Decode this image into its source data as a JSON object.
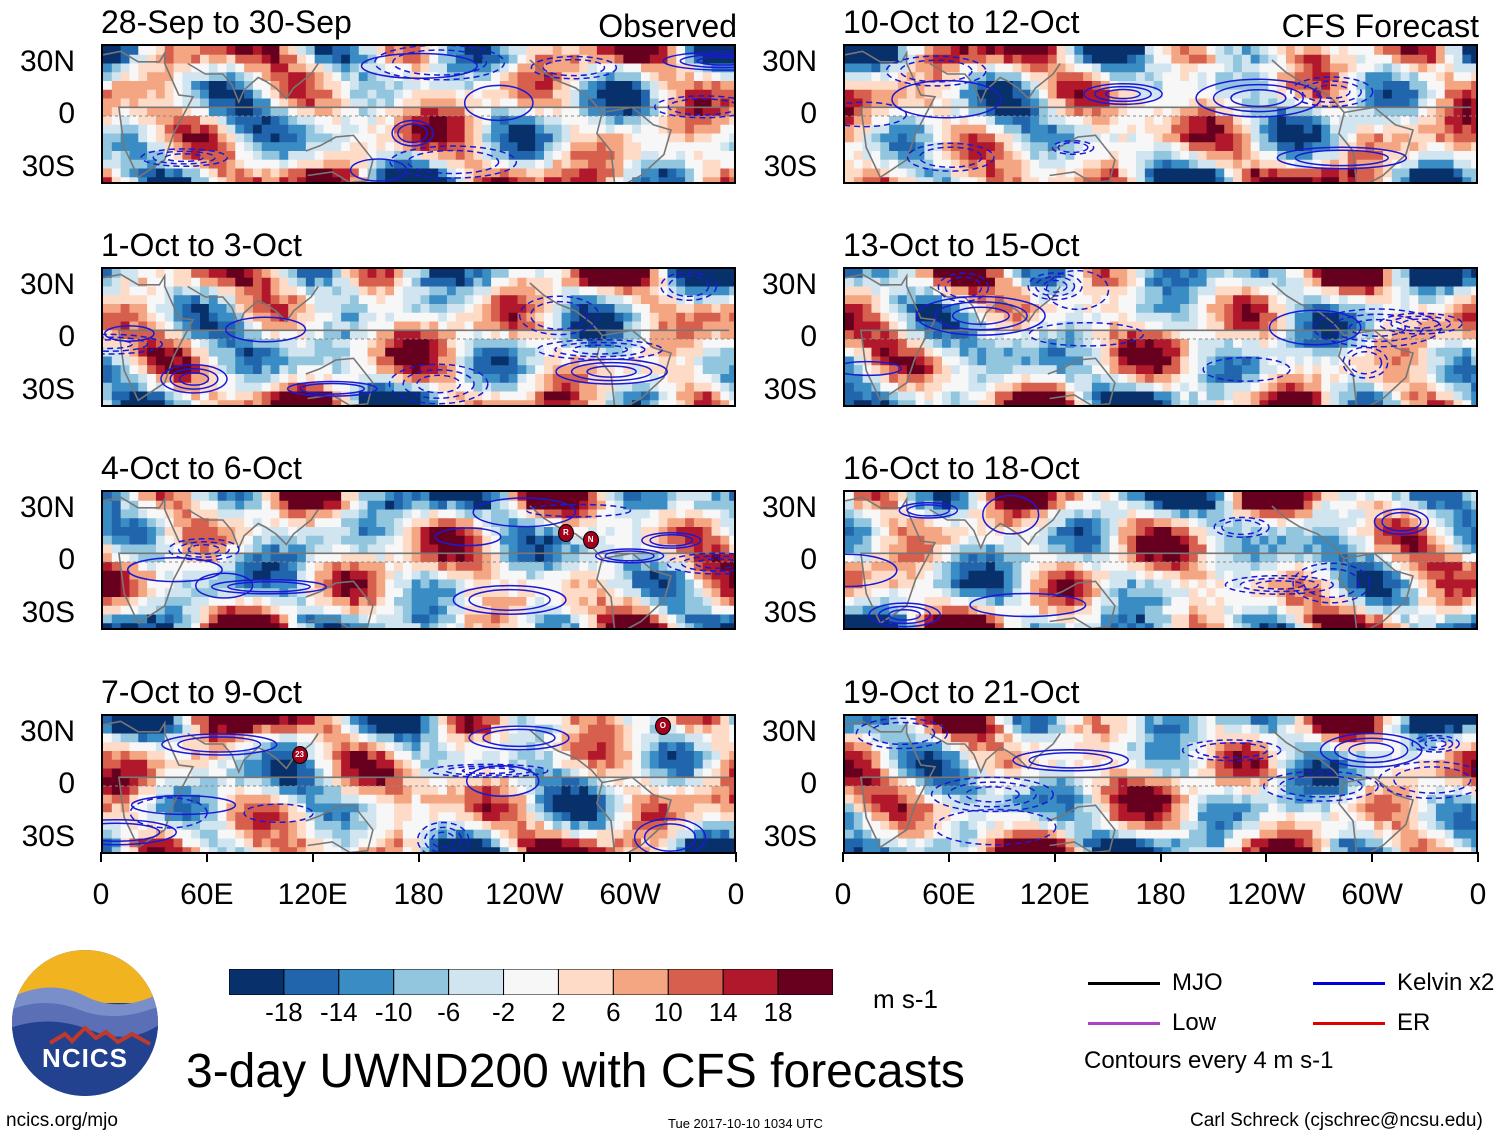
{
  "panels": [
    {
      "title": "28-Sep to 30-Sep",
      "tag": "Observed",
      "column": "left",
      "seed": 11
    },
    {
      "title": "1-Oct to 3-Oct",
      "tag": "",
      "column": "left",
      "seed": 23
    },
    {
      "title": "4-Oct to 6-Oct",
      "tag": "",
      "column": "left",
      "seed": 37
    },
    {
      "title": "7-Oct to 9-Oct",
      "tag": "",
      "column": "left",
      "seed": 41
    },
    {
      "title": "10-Oct to 12-Oct",
      "tag": "CFS Forecast",
      "column": "right",
      "seed": 53
    },
    {
      "title": "13-Oct to 15-Oct",
      "tag": "",
      "column": "right",
      "seed": 67
    },
    {
      "title": "16-Oct to 18-Oct",
      "tag": "",
      "column": "right",
      "seed": 71
    },
    {
      "title": "19-Oct to 21-Oct",
      "tag": "",
      "column": "right",
      "seed": 89
    }
  ],
  "storm_markers": [
    {
      "panel": 2,
      "label": "R",
      "lon": 263,
      "lat": 16
    },
    {
      "panel": 2,
      "label": "N",
      "lon": 277,
      "lat": 12
    },
    {
      "panel": 3,
      "label": "23",
      "lon": 112,
      "lat": 17
    },
    {
      "panel": 3,
      "label": "O",
      "lon": 318,
      "lat": 34
    }
  ],
  "chart_data": {
    "type": "heatmap",
    "title": "3-day UWND200 with CFS forecasts",
    "variable": "200-hPa zonal wind anomaly",
    "units": "m s-1",
    "y_ticks": [
      "30N",
      "0",
      "30S"
    ],
    "y_values": [
      30,
      0,
      -30
    ],
    "x_ticks": [
      "0",
      "60E",
      "120E",
      "180",
      "120W",
      "60W",
      "0"
    ],
    "x_values": [
      0,
      60,
      120,
      180,
      240,
      300,
      360
    ],
    "lat_range": [
      -40,
      40
    ],
    "lon_range": [
      0,
      360
    ],
    "colorbar": {
      "levels": [
        "-18",
        "-14",
        "-10",
        "-6",
        "-2",
        "2",
        "6",
        "10",
        "14",
        "18"
      ],
      "colors": [
        "#08306b",
        "#2166ac",
        "#3a8cc4",
        "#92c5de",
        "#d1e5f0",
        "#f7f7f7",
        "#fddbc7",
        "#f4a582",
        "#d6604d",
        "#b2182b",
        "#67001f"
      ],
      "units_label": "m s-1"
    },
    "legend": [
      {
        "label": "MJO",
        "color": "#000000"
      },
      {
        "label": "Kelvin x2",
        "color": "#0000dd"
      },
      {
        "label": "Low",
        "color": "#b040c8"
      },
      {
        "label": "ER",
        "color": "#dd0000"
      }
    ],
    "contour_note": "Contours every 4 m s-1"
  },
  "footer": {
    "logo_text": "NCICS",
    "url": "ncics.org/mjo",
    "timestamp": "Tue 2017-10-10 1034 UTC",
    "author": "Carl Schreck (cjschrec@ncsu.edu)"
  }
}
